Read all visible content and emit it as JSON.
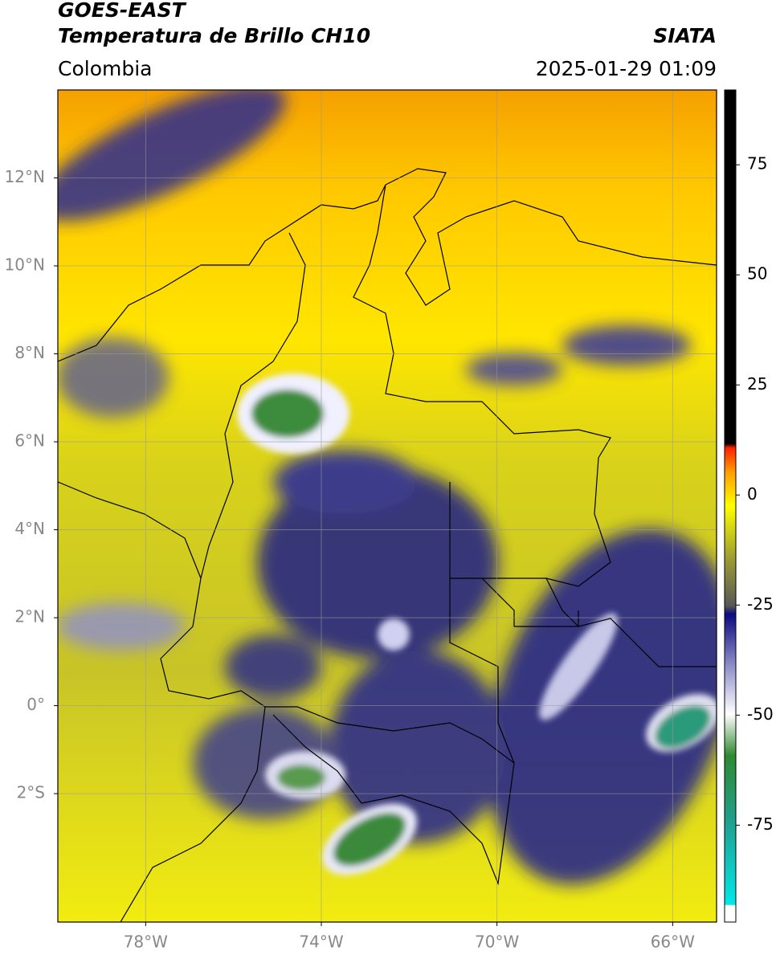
{
  "header": {
    "satellite": "GOES-EAST",
    "product": "Temperatura de Brillo CH10",
    "region": "Colombia",
    "source": "SIATA",
    "datetime": "2025-01-29 01:09"
  },
  "map": {
    "lon_range": [
      -80,
      -65
    ],
    "lat_range": [
      -4.92,
      14
    ],
    "lon_ticks": [
      {
        "value": -78,
        "label": "78°W"
      },
      {
        "value": -74,
        "label": "74°W"
      },
      {
        "value": -70,
        "label": "70°W"
      },
      {
        "value": -66,
        "label": "66°W"
      }
    ],
    "lat_ticks": [
      {
        "value": 12,
        "label": "12°N"
      },
      {
        "value": 10,
        "label": "10°N"
      },
      {
        "value": 8,
        "label": "8°N"
      },
      {
        "value": 6,
        "label": "6°N"
      },
      {
        "value": 4,
        "label": "4°N"
      },
      {
        "value": 2,
        "label": "2°N"
      },
      {
        "value": 0,
        "label": "0°"
      },
      {
        "value": -2,
        "label": "2°S"
      }
    ]
  },
  "colorbar": {
    "range": [
      -97,
      92
    ],
    "ticks": [
      75,
      50,
      25,
      0,
      -25,
      -50,
      -75
    ]
  }
}
